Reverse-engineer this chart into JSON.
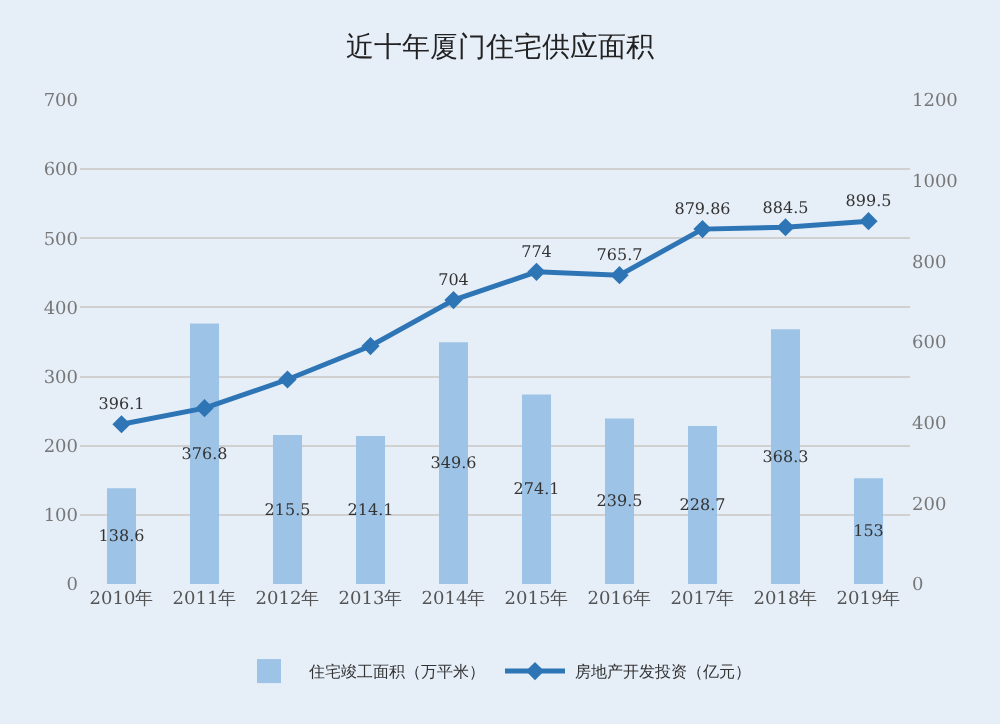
{
  "chart_data": {
    "type": "bar",
    "title": "近十年厦门住宅供应面积",
    "categories": [
      "2010年",
      "2011年",
      "2012年",
      "2013年",
      "2014年",
      "2015年",
      "2016年",
      "2017年",
      "2018年",
      "2019年"
    ],
    "series": [
      {
        "name": "住宅竣工面积（万平米）",
        "color": "#9dc3e6",
        "values": [
          138.6,
          376.8,
          215.5,
          214.1,
          349.6,
          274.1,
          239.5,
          228.7,
          368.3,
          153
        ],
        "value_labels": [
          "138.6",
          "376.8",
          "215.5",
          "214.1",
          "349.6",
          "274.1",
          "239.5",
          "228.7",
          "368.3",
          "153"
        ]
      },
      {
        "name": "房地产开发投资（亿元）",
        "type": "line",
        "axis": "y2",
        "color": "#2e75b6",
        "marker": "diamond",
        "values": [
          396.1,
          436,
          507,
          590,
          704,
          774,
          765.7,
          879.86,
          884.5,
          899.5
        ],
        "value_labels": [
          "396.1",
          null,
          null,
          null,
          "704",
          "774",
          "765.7",
          "879.86",
          "884.5",
          "899.5"
        ]
      }
    ],
    "ylim": [
      0,
      700
    ],
    "yticks": [
      0,
      100,
      200,
      300,
      400,
      500,
      600,
      700
    ],
    "y2lim": [
      0,
      1200
    ],
    "y2ticks": [
      0,
      200,
      400,
      600,
      800,
      1000,
      1200
    ],
    "grid": "y",
    "legend": "bottom"
  }
}
